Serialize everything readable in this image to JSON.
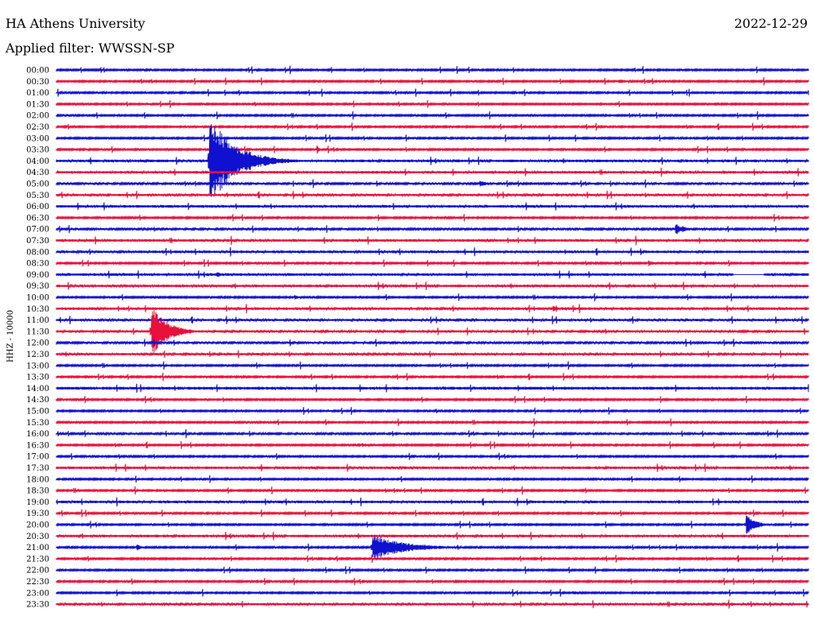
{
  "header": {
    "title": "HA Athens University",
    "date": "2022-12-29",
    "filter_label": "Applied filter: WWSSN-SP"
  },
  "colors": {
    "trace_a": "#1010d0",
    "trace_b": "#e8103c"
  },
  "chart_data": {
    "type": "line",
    "title": "HA Athens University",
    "date": "2022-12-29",
    "filter": "WWSSN-SP",
    "ylabel": "HHZ - 10000",
    "row_labels": [
      "00:00",
      "00:30",
      "01:00",
      "01:30",
      "02:00",
      "02:30",
      "03:00",
      "03:30",
      "04:00",
      "04:30",
      "05:00",
      "05:30",
      "06:00",
      "06:30",
      "07:00",
      "07:30",
      "08:00",
      "08:30",
      "09:00",
      "09:30",
      "10:00",
      "10:30",
      "11:00",
      "11:30",
      "12:00",
      "12:30",
      "13:00",
      "13:30",
      "14:00",
      "14:30",
      "15:00",
      "15:30",
      "16:00",
      "16:30",
      "17:00",
      "17:30",
      "18:00",
      "18:30",
      "19:00",
      "19:30",
      "20:00",
      "20:30",
      "21:00",
      "21:30",
      "22:00",
      "22:30",
      "23:00",
      "23:30"
    ],
    "x_unit": "minutes into row",
    "xlim": [
      0,
      30
    ],
    "noise_level": [
      1,
      1,
      1,
      1,
      1,
      1,
      1,
      1,
      1.6,
      1.6,
      1.2,
      1.4,
      1.6,
      1,
      1.2,
      1.6,
      1.6,
      1,
      1.6,
      1.6,
      1,
      1.6,
      1.4,
      1.4,
      1.2,
      1.4,
      1,
      1,
      1.8,
      1,
      1,
      1,
      1.2,
      1,
      1,
      1.6,
      1,
      1,
      1.6,
      1,
      1,
      1.6,
      1,
      1,
      1,
      1,
      1,
      1.4
    ],
    "events": [
      {
        "row": 8,
        "minute": 6.1,
        "amplitude": 58,
        "coda": 2.0
      },
      {
        "row": 23,
        "minute": 3.8,
        "amplitude": 34,
        "coda": 1.2
      },
      {
        "row": 42,
        "minute": 12.6,
        "amplitude": 16,
        "coda": 2.6
      },
      {
        "row": 40,
        "minute": 27.5,
        "amplitude": 14,
        "coda": 0.8
      },
      {
        "row": 14,
        "minute": 24.7,
        "amplitude": 7,
        "coda": 0.7
      },
      {
        "row": 10,
        "minute": 16.9,
        "amplitude": 5,
        "coda": 0.5
      },
      {
        "row": 1,
        "minute": 22.4,
        "amplitude": 3,
        "coda": 0.9
      },
      {
        "row": 17,
        "minute": 23.6,
        "amplitude": 4,
        "coda": 0.5
      },
      {
        "row": 21,
        "minute": 19.8,
        "amplitude": 4,
        "coda": 0.5
      },
      {
        "row": 42,
        "minute": 3.2,
        "amplitude": 4,
        "coda": 0.4
      },
      {
        "row": 46,
        "minute": 20.6,
        "amplitude": 3,
        "coda": 0.5
      },
      {
        "row": 47,
        "minute": 26.9,
        "amplitude": 3,
        "coda": 0.5
      },
      {
        "row": 7,
        "minute": 10.4,
        "amplitude": 6,
        "coda": 0.2
      },
      {
        "row": 38,
        "minute": 24.8,
        "amplitude": 3,
        "coda": 0.3
      },
      {
        "row": 11,
        "minute": 19.9,
        "amplitude": 3,
        "coda": 0.4
      },
      {
        "row": 18,
        "minute": 6.4,
        "amplitude": 5,
        "coda": 0.3
      },
      {
        "row": 20,
        "minute": 9.5,
        "amplitude": 3,
        "coda": 0.5
      },
      {
        "row": 33,
        "minute": 12.2,
        "amplitude": 3,
        "coda": 0.6
      },
      {
        "row": 37,
        "minute": 11.8,
        "amplitude": 3,
        "coda": 0.6
      }
    ],
    "gaps": [
      {
        "row": 18,
        "start_minute": 27.0,
        "end_minute": 28.2
      }
    ]
  }
}
